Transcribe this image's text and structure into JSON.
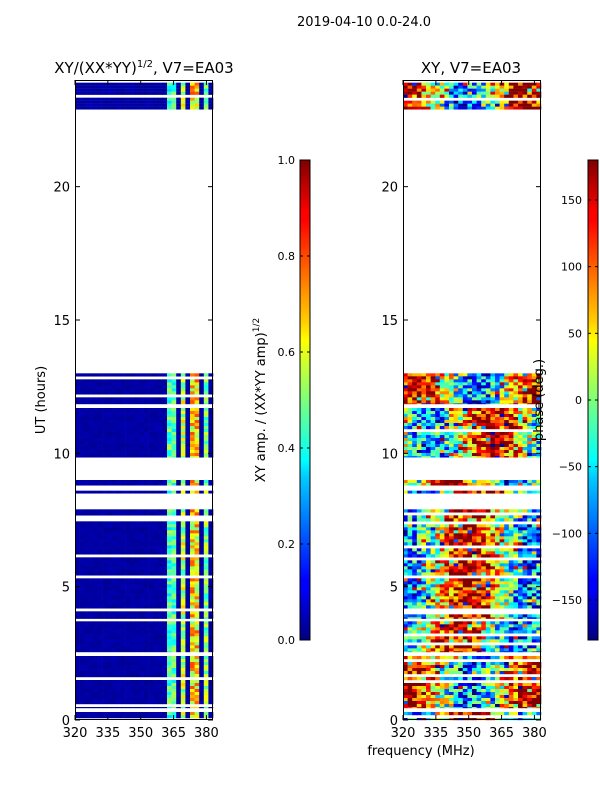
{
  "figure": {
    "suptitle": "2019-04-10 0.0-24.0",
    "xlabel": "frequency (MHz)"
  },
  "colors": {
    "jet_dark_blue": "#00007f",
    "jet_blue": "#0000ff",
    "jet_cyan": "#00ffff",
    "jet_yellow": "#ffff00",
    "jet_red": "#ff0000",
    "jet_dark_red": "#7f0000"
  },
  "chart_data": [
    {
      "type": "heatmap",
      "title_main": "XY/(XX*YY)",
      "title_sup": "1/2",
      "title_tail": ", V7=EA03",
      "xlabel": "",
      "ylabel": "UT (hours)",
      "xlim": [
        320,
        383
      ],
      "ylim": [
        0,
        24
      ],
      "xticks": [
        320,
        335,
        350,
        365,
        380
      ],
      "yticks": [
        0,
        5,
        10,
        15,
        20
      ],
      "colorbar": {
        "label_main": "XY amp. / (XX*YY amp)",
        "label_sup": "1/2",
        "range": [
          0.0,
          1.0
        ],
        "ticks": [
          "0.0",
          "0.2",
          "0.4",
          "0.6",
          "0.8",
          "1.0"
        ],
        "tick_values": [
          0.0,
          0.2,
          0.4,
          0.6,
          0.8,
          1.0
        ]
      },
      "time_blocks_hours": [
        [
          0.0,
          0.3
        ],
        [
          0.45,
          2.4
        ],
        [
          2.55,
          3.7
        ],
        [
          3.8,
          7.9
        ],
        [
          8.5,
          8.6
        ],
        [
          8.8,
          9.0
        ],
        [
          9.85,
          11.7
        ],
        [
          11.85,
          13.0
        ],
        [
          22.9,
          23.9
        ]
      ],
      "bright_channels": [
        {
          "start_mhz": 363,
          "end_mhz": 366,
          "value": 0.45
        },
        {
          "start_mhz": 368,
          "end_mhz": 371,
          "value": 0.55
        },
        {
          "start_mhz": 373,
          "end_mhz": 377,
          "value": 0.65
        },
        {
          "start_mhz": 378,
          "end_mhz": 381,
          "value": 0.5
        }
      ],
      "background_value": 0.02
    },
    {
      "type": "heatmap",
      "title_main": "XY, V7=EA03",
      "xlabel": "",
      "ylabel": "",
      "xlim": [
        320,
        383
      ],
      "ylim": [
        0,
        24
      ],
      "xticks": [
        320,
        335,
        350,
        365,
        380
      ],
      "yticks": [
        0,
        5,
        10,
        15,
        20
      ],
      "colorbar": {
        "label_main": "phase (deg.)",
        "range": [
          -180,
          180
        ],
        "ticks": [
          "−150",
          "−100",
          "−50",
          "0",
          "50",
          "100",
          "150"
        ],
        "tick_values": [
          -150,
          -100,
          -50,
          0,
          50,
          100,
          150
        ]
      },
      "time_blocks_hours": [
        [
          0.0,
          0.3
        ],
        [
          0.45,
          2.4
        ],
        [
          2.55,
          3.7
        ],
        [
          3.8,
          7.9
        ],
        [
          8.5,
          8.6
        ],
        [
          8.8,
          9.0
        ],
        [
          9.85,
          11.7
        ],
        [
          11.85,
          13.0
        ],
        [
          22.9,
          23.9
        ]
      ]
    }
  ]
}
